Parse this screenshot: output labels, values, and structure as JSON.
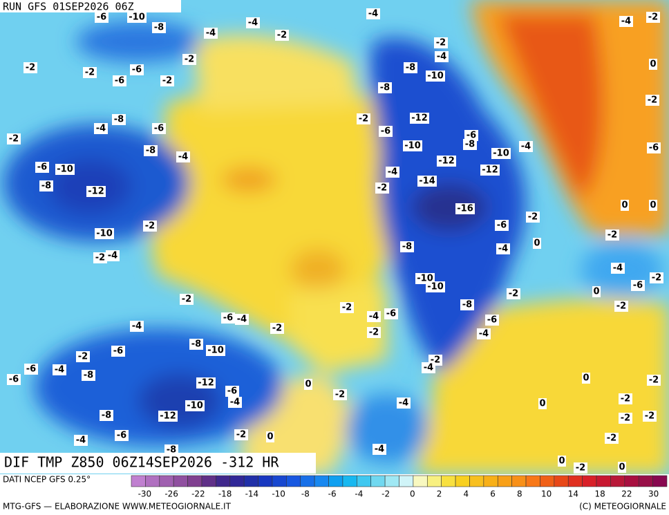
{
  "header": {
    "run": "RUN GFS 01SEP2026 06Z"
  },
  "map": {
    "title": "DIF TMP Z850 06Z14SEP2026 -312 HR",
    "contour_labels": [
      -6,
      -10,
      -8,
      -4,
      -4,
      -2,
      -4,
      -2,
      -4,
      -2,
      -2,
      -6,
      -6,
      -2,
      -2,
      -8,
      -8,
      -10,
      -8,
      -6,
      -4,
      -2,
      -8,
      -4,
      -2,
      -6,
      -12,
      -10,
      -6,
      -8,
      -10,
      -4,
      -12,
      -12,
      -6,
      -10,
      -8,
      -12,
      -4,
      -2,
      -14,
      -16,
      -2,
      -6,
      -2,
      -10,
      -2,
      -4,
      -8,
      -4,
      0,
      0,
      0,
      -2,
      -4,
      -2,
      -6,
      0,
      -10,
      -10,
      -2,
      -2,
      -2,
      -8,
      -6,
      -4,
      -4,
      -6,
      -6,
      -2,
      -4,
      -2,
      -2,
      -4,
      -8,
      -10,
      -6,
      -2,
      -2,
      -4,
      -6,
      -6,
      -4,
      -8,
      -12,
      -6,
      -4,
      0,
      0,
      -2,
      -2,
      -4,
      -10,
      0,
      -2,
      -8,
      -12,
      -2,
      -2,
      -6,
      -2,
      0,
      -4,
      -2,
      -8,
      -4,
      0,
      -2,
      0,
      -2,
      -4,
      0,
      -2,
      -6
    ]
  },
  "legend": {
    "source": "DATI NCEP GFS 0.25°",
    "ticks": [
      -30,
      -26,
      -22,
      -18,
      -14,
      -10,
      -8,
      -6,
      -4,
      -2,
      0,
      2,
      4,
      6,
      8,
      10,
      14,
      18,
      22,
      30
    ],
    "colors": [
      "#c080d0",
      "#b070c0",
      "#a060b0",
      "#9050a0",
      "#804090",
      "#603088",
      "#40288c",
      "#302898",
      "#2030a8",
      "#1838c0",
      "#1848d0",
      "#1858e0",
      "#1870e8",
      "#1888f0",
      "#10a0f0",
      "#18b8f0",
      "#40c8f0",
      "#70d8f0",
      "#a0e8f4",
      "#d0f4f8",
      "#f8f8c0",
      "#f8f080",
      "#f8e040",
      "#f8d020",
      "#f8c020",
      "#f8b018",
      "#f8a018",
      "#f89018",
      "#f87818",
      "#f06018",
      "#e84818",
      "#e03020",
      "#d82028",
      "#c81830",
      "#b81838",
      "#a81040",
      "#981048",
      "#880850"
    ],
    "credit": "MTG-GFS — ELABORAZIONE WWW.METEOGIORNALE.IT",
    "copyright": "(C) METEOGIORNALE"
  }
}
